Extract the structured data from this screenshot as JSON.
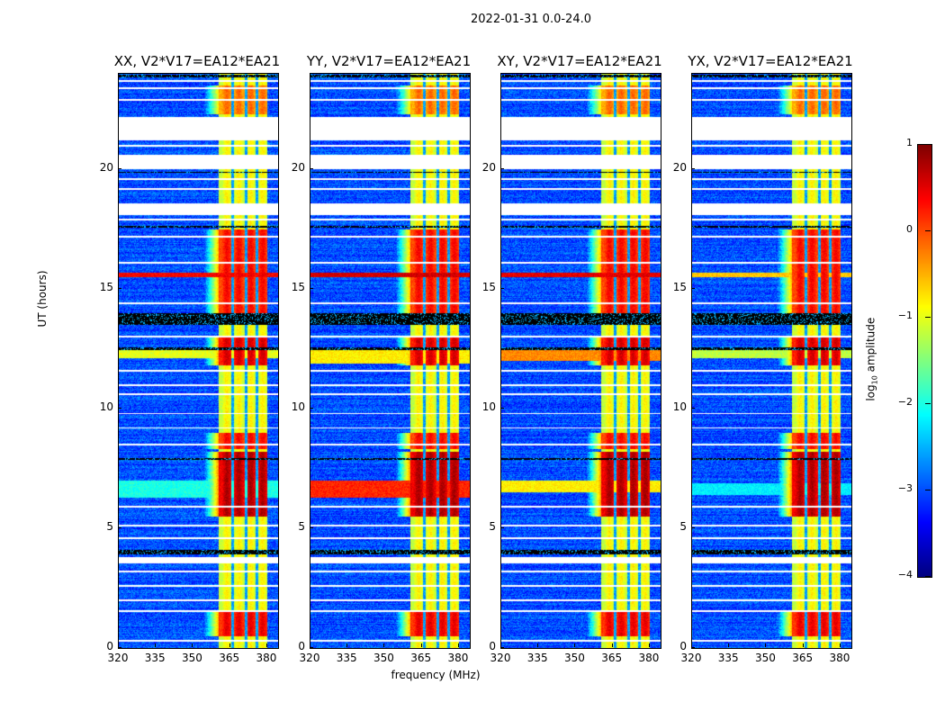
{
  "chart_data": {
    "type": "heatmap",
    "title": "2022-01-31 0.0-24.0",
    "xlabel": "frequency (MHz)",
    "ylabel": "UT (hours)",
    "xlim": [
      320,
      384.4
    ],
    "ylim": [
      0,
      24
    ],
    "xticks": [
      "320",
      "335",
      "350",
      "365",
      "380"
    ],
    "yticks": [
      "0",
      "5",
      "10",
      "15",
      "20"
    ],
    "colorbar": {
      "label_prefix": "log",
      "label_sub": "10",
      "label_suffix": " amplitude",
      "range": [
        -4,
        1
      ],
      "ticks": [
        "1",
        "0",
        "−1",
        "−2",
        "−3",
        "−4"
      ],
      "colormap": "jet"
    },
    "background_log_amplitude": -3,
    "flagged_ut": [
      [
        21.2,
        22.2
      ],
      [
        20.0,
        20.6
      ],
      [
        18.1,
        18.6
      ],
      [
        3.55,
        3.8
      ]
    ],
    "thin_flagged_ut": [
      0.3,
      1.55,
      2.0,
      2.6,
      3.2,
      4.6,
      5.1,
      5.9,
      8.5,
      9.2,
      9.8,
      10.6,
      11.0,
      11.6,
      13.0,
      14.4,
      16.1,
      17.2,
      17.9,
      19.2,
      19.6,
      21.0,
      22.9,
      23.4,
      23.7
    ],
    "dark_ut": [
      [
        3.9,
        4.1
      ],
      [
        7.85,
        7.95
      ],
      [
        12.45,
        12.55
      ],
      [
        13.5,
        14.0
      ],
      [
        17.55,
        17.65
      ],
      [
        19.85,
        19.9
      ],
      [
        23.85,
        23.95
      ]
    ],
    "rfi_band_mhz": [
      360.5,
      380.0
    ],
    "rfi_gaps_mhz": [
      366.0,
      371.5,
      376.0
    ],
    "rfi_base_log_amplitude": -1,
    "rfi_hot_ut": [
      [
        0.5,
        1.5,
        0.3
      ],
      [
        5.5,
        8.2,
        0.6
      ],
      [
        8.3,
        9.0,
        0.2
      ],
      [
        11.8,
        13.0,
        0.4
      ],
      [
        14.0,
        17.5,
        0.2
      ],
      [
        22.3,
        23.5,
        -0.3
      ]
    ],
    "panels": [
      {
        "title": "XX, V2*V17=EA12*EA21",
        "broadband_ut": [
          [
            15.5,
            15.7,
            0.4
          ],
          [
            12.1,
            12.5,
            -1.0
          ],
          [
            6.3,
            7.0,
            -2.0
          ]
        ]
      },
      {
        "title": "YY, V2*V17=EA12*EA21",
        "broadband_ut": [
          [
            15.5,
            15.7,
            0.6
          ],
          [
            11.9,
            12.5,
            -0.8
          ],
          [
            6.3,
            7.0,
            0.2
          ]
        ]
      },
      {
        "title": "XY, V2*V17=EA12*EA21",
        "broadband_ut": [
          [
            15.5,
            15.7,
            0.5
          ],
          [
            12.0,
            12.5,
            -0.3
          ],
          [
            6.5,
            7.0,
            -0.8
          ]
        ]
      },
      {
        "title": "YX, V2*V17=EA12*EA21",
        "broadband_ut": [
          [
            15.5,
            15.7,
            -0.6
          ],
          [
            12.1,
            12.5,
            -1.2
          ],
          [
            6.4,
            6.9,
            -2.2
          ]
        ]
      }
    ]
  }
}
